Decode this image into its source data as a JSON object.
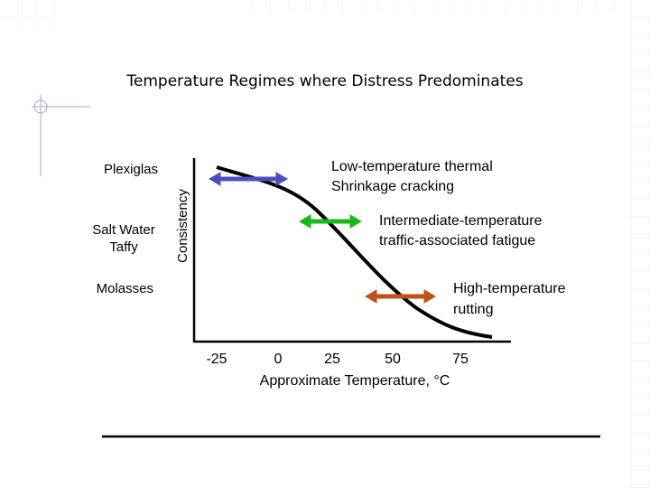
{
  "title": "Temperature Regimes where Distress Predominates",
  "y_axis": {
    "label": "Consistency",
    "levels": [
      "Plexiglas",
      [
        "Salt Water",
        "Taffy"
      ],
      "Molasses"
    ]
  },
  "x_axis": {
    "label": "Approximate Temperature, °C",
    "ticks": [
      -25,
      0,
      25,
      50,
      75
    ]
  },
  "regimes": [
    {
      "lines": [
        "Low-temperature thermal",
        "Shrinkage cracking"
      ],
      "color": "#4a4fc0"
    },
    {
      "lines": [
        "Intermediate-temperature",
        "traffic-associated fatigue"
      ],
      "color": "#1ab81a"
    },
    {
      "lines": [
        "High-temperature",
        "rutting"
      ],
      "color": "#c0501c"
    }
  ]
}
